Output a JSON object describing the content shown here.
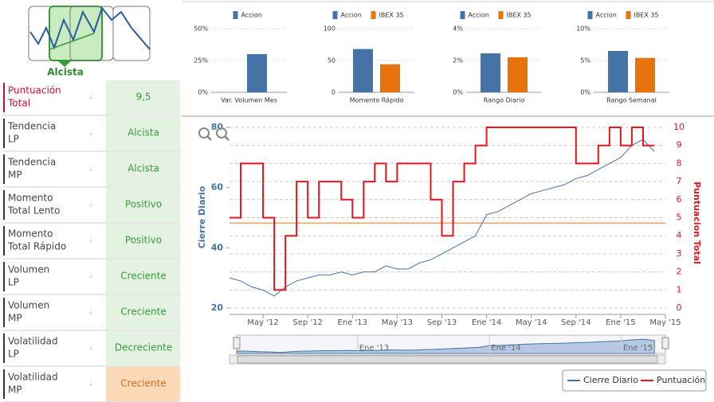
{
  "signal": {
    "label": "Alcista"
  },
  "table": {
    "rows": [
      {
        "label": [
          "Puntuación",
          "Total"
        ],
        "value": "9,5"
      },
      {
        "label": [
          "Tendencia",
          "LP"
        ],
        "value": "Alcista"
      },
      {
        "label": [
          "Tendencia",
          "MP"
        ],
        "value": "Alcista"
      },
      {
        "label": [
          "Momento",
          "Total Lento"
        ],
        "value": "Positivo"
      },
      {
        "label": [
          "Momento",
          "Total Rápido"
        ],
        "value": "Positivo"
      },
      {
        "label": [
          "Volumen",
          "LP"
        ],
        "value": "Creciente"
      },
      {
        "label": [
          "Volumen",
          "MP"
        ],
        "value": "Creciente"
      },
      {
        "label": [
          "Volatilidad",
          "LP"
        ],
        "value": "Decreciente"
      },
      {
        "label": [
          "Volatilidad",
          "MP"
        ],
        "value": "Creciente"
      }
    ]
  },
  "mini_charts": [
    {
      "type": "bar",
      "title": "Var. Volumen Mes",
      "series": [
        {
          "name": "Accion",
          "color": "#4572a7",
          "values": [
            30
          ]
        }
      ],
      "ylim": [
        0,
        50
      ],
      "yticks": [
        {
          "value": 0,
          "label": "0%"
        },
        {
          "value": 25,
          "label": "25%"
        },
        {
          "value": 50,
          "label": "50%"
        }
      ]
    },
    {
      "type": "bar",
      "title": "Momento Rápido",
      "series": [
        {
          "name": "Accion",
          "color": "#4572a7",
          "values": [
            68
          ]
        },
        {
          "name": "IBEX 35",
          "color": "#e8730c",
          "values": [
            44
          ]
        }
      ],
      "ylim": [
        0,
        100
      ],
      "yticks": [
        0,
        50,
        100
      ]
    },
    {
      "type": "bar",
      "title": "Rango Diario",
      "series": [
        {
          "name": "Accion",
          "color": "#4572a7",
          "values": [
            2.45
          ]
        },
        {
          "name": "IBEX 35",
          "color": "#e8730c",
          "values": [
            2.2
          ]
        }
      ],
      "ylim": [
        0,
        4
      ],
      "yticks": [
        {
          "value": 0,
          "label": "0%"
        },
        {
          "value": 2,
          "label": "2%"
        },
        {
          "value": 4,
          "label": "4%"
        }
      ]
    },
    {
      "type": "bar",
      "title": "Rango Semanal",
      "series": [
        {
          "name": "Accion",
          "color": "#4572a7",
          "values": [
            6.5
          ]
        },
        {
          "name": "IBEX 35",
          "color": "#e8730c",
          "values": [
            5.4
          ]
        }
      ],
      "ylim": [
        0,
        10
      ],
      "yticks": [
        {
          "value": 0,
          "label": "0%"
        },
        {
          "value": 5,
          "label": "5%"
        },
        {
          "value": 10,
          "label": "10%"
        }
      ]
    }
  ],
  "chart_data": {
    "type": "line",
    "ylabel": "Cierre Diario",
    "y2label": "Puntuacion Total",
    "x": [
      "2012-02",
      "2012-03",
      "2012-04",
      "2012-05",
      "2012-06",
      "2012-07",
      "2012-08",
      "2012-09",
      "2012-10",
      "2012-11",
      "2012-12",
      "2013-01",
      "2013-02",
      "2013-03",
      "2013-04",
      "2013-05",
      "2013-06",
      "2013-07",
      "2013-08",
      "2013-09",
      "2013-10",
      "2013-11",
      "2013-12",
      "2014-01",
      "2014-02",
      "2014-03",
      "2014-04",
      "2014-05",
      "2014-06",
      "2014-07",
      "2014-08",
      "2014-09",
      "2014-10",
      "2014-11",
      "2014-12",
      "2015-01",
      "2015-02",
      "2015-03",
      "2015-04"
    ],
    "series": [
      {
        "name": "Cierre Diario",
        "color": "#4572a7",
        "values": [
          30,
          29,
          27,
          26,
          24,
          27,
          29,
          30,
          31,
          31,
          32,
          31,
          32,
          32,
          34,
          33,
          33,
          35,
          36,
          38,
          40,
          42,
          44,
          51,
          52,
          54,
          56,
          58,
          59,
          60,
          61,
          63,
          64,
          66,
          68,
          70,
          74,
          76,
          72
        ]
      },
      {
        "name": "Puntuación",
        "color": "#e8141e",
        "axis": "y2",
        "step": true,
        "values": [
          5,
          8,
          8,
          5,
          1,
          4,
          7,
          5,
          7,
          7,
          6,
          5,
          7,
          8,
          7,
          8,
          8,
          8,
          6,
          4,
          7,
          8,
          9,
          10,
          10,
          10,
          10,
          10,
          10,
          10,
          10,
          8,
          8,
          9,
          10,
          9,
          10,
          9,
          9
        ]
      }
    ],
    "xlim": [
      "2012-02",
      "2015-05"
    ],
    "xticks": [
      {
        "value": "2012-05",
        "label": "May '12"
      },
      {
        "value": "2012-09",
        "label": "Sep '12"
      },
      {
        "value": "2013-01",
        "label": "Ene '13"
      },
      {
        "value": "2013-05",
        "label": "May '13"
      },
      {
        "value": "2013-09",
        "label": "Sep '13"
      },
      {
        "value": "2014-01",
        "label": "Ene '14"
      },
      {
        "value": "2014-05",
        "label": "May '14"
      },
      {
        "value": "2014-09",
        "label": "Sep '14"
      },
      {
        "value": "2015-01",
        "label": "Ene '15"
      },
      {
        "value": "2015-05",
        "label": "May '15"
      }
    ],
    "ylim": [
      20,
      80
    ],
    "yticks": [
      20,
      40,
      60,
      80
    ],
    "y2lim": [
      0,
      10
    ],
    "y2ticks": [
      0,
      1,
      2,
      3,
      4,
      5,
      6,
      7,
      8,
      9,
      10
    ],
    "reference_line": {
      "value": 4.7,
      "axis": "y2",
      "color": "#f4a460"
    },
    "grid": true,
    "navigator_ticks": [
      {
        "value": "2013-01",
        "label": "Ene '13"
      },
      {
        "value": "2014-01",
        "label": "Ene '14"
      },
      {
        "value": "2015-01",
        "label": "Ene '15"
      }
    ]
  }
}
